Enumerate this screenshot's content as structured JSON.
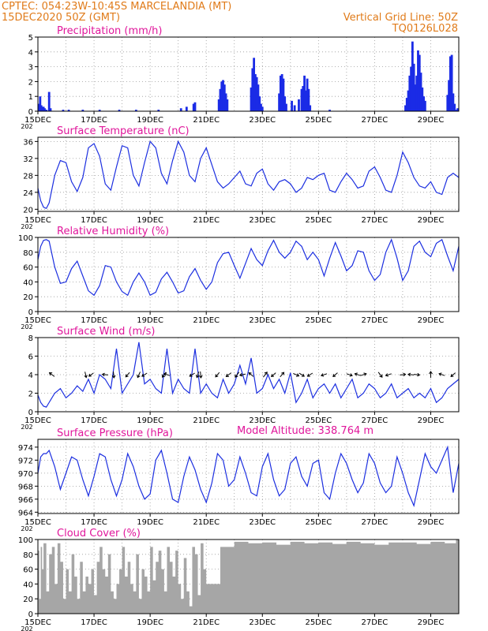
{
  "header": {
    "line1": "CPTEC:  054:23W-10:45S  MARCELANDIA (MT)",
    "line2": "15DEC2020 50Z (GMT)",
    "grid_note": "Vertical Grid Line: 50Z",
    "code": "TQ0126L028"
  },
  "colors": {
    "header": "#e07b1a",
    "title": "#e0169b",
    "series": "#1c2fe0",
    "bars": "#1a2be6",
    "cloud": "#a6a6a6",
    "arrow": "#000000"
  },
  "x_axis": {
    "day_start": 15.0,
    "day_end": 30.0,
    "tick_days": [
      15,
      17,
      19,
      21,
      23,
      25,
      27,
      29
    ],
    "tick_labels": [
      "15DEC",
      "17DEC",
      "19DEC",
      "21DEC",
      "23DEC",
      "25DEC",
      "27DEC",
      "29DEC"
    ],
    "grid_days": [
      16,
      17,
      18,
      19,
      20,
      21,
      22,
      23,
      24,
      25,
      26,
      27,
      28,
      29
    ],
    "year_fragment": "202"
  },
  "chart_data": [
    {
      "id": "precip",
      "type": "bar",
      "title": "Precipitation  (mm/h)",
      "ylim": [
        0,
        5
      ],
      "yticks": [
        0,
        1,
        2,
        3,
        4,
        5
      ],
      "bars": [
        [
          15.05,
          0.5
        ],
        [
          15.08,
          1.0
        ],
        [
          15.12,
          0.4
        ],
        [
          15.16,
          0.3
        ],
        [
          15.2,
          0.3
        ],
        [
          15.24,
          0.2
        ],
        [
          15.3,
          0.1
        ],
        [
          15.4,
          1.3
        ],
        [
          15.45,
          0.2
        ],
        [
          15.9,
          0.1
        ],
        [
          16.1,
          0.1
        ],
        [
          16.6,
          0.1
        ],
        [
          17.2,
          0.1
        ],
        [
          17.9,
          0.1
        ],
        [
          18.5,
          0.1
        ],
        [
          19.3,
          0.1
        ],
        [
          20.1,
          0.2
        ],
        [
          20.3,
          0.3
        ],
        [
          20.55,
          0.5
        ],
        [
          20.6,
          0.6
        ],
        [
          21.45,
          0.8
        ],
        [
          21.5,
          1.5
        ],
        [
          21.55,
          2.0
        ],
        [
          21.6,
          2.1
        ],
        [
          21.65,
          1.8
        ],
        [
          21.7,
          1.2
        ],
        [
          21.75,
          0.8
        ],
        [
          22.6,
          1.6
        ],
        [
          22.65,
          2.9
        ],
        [
          22.7,
          3.6
        ],
        [
          22.75,
          2.5
        ],
        [
          22.8,
          2.3
        ],
        [
          22.85,
          1.8
        ],
        [
          22.9,
          1.0
        ],
        [
          22.95,
          0.5
        ],
        [
          23.0,
          0.3
        ],
        [
          23.6,
          1.2
        ],
        [
          23.65,
          2.4
        ],
        [
          23.7,
          2.5
        ],
        [
          23.75,
          2.2
        ],
        [
          23.8,
          1.0
        ],
        [
          23.85,
          0.5
        ],
        [
          24.05,
          0.7
        ],
        [
          24.15,
          0.4
        ],
        [
          24.3,
          0.8
        ],
        [
          24.4,
          1.5
        ],
        [
          24.45,
          1.7
        ],
        [
          24.5,
          2.4
        ],
        [
          24.55,
          1.4
        ],
        [
          24.6,
          2.2
        ],
        [
          24.65,
          1.5
        ],
        [
          24.7,
          0.4
        ],
        [
          25.4,
          0.1
        ],
        [
          28.1,
          0.4
        ],
        [
          28.15,
          0.9
        ],
        [
          28.2,
          1.4
        ],
        [
          28.25,
          2.4
        ],
        [
          28.3,
          3.0
        ],
        [
          28.35,
          4.7
        ],
        [
          28.4,
          3.2
        ],
        [
          28.45,
          1.8
        ],
        [
          28.5,
          2.4
        ],
        [
          28.55,
          4.1
        ],
        [
          28.6,
          3.8
        ],
        [
          28.65,
          2.6
        ],
        [
          28.7,
          1.6
        ],
        [
          28.75,
          1.0
        ],
        [
          28.8,
          0.7
        ],
        [
          29.6,
          1.1
        ],
        [
          29.65,
          2.1
        ],
        [
          29.7,
          3.7
        ],
        [
          29.75,
          3.8
        ],
        [
          29.8,
          1.2
        ],
        [
          29.85,
          0.5
        ],
        [
          29.9,
          0.1
        ],
        [
          29.96,
          0.2
        ]
      ]
    },
    {
      "id": "temp",
      "type": "line",
      "title": "Surface Temperature (nC)",
      "ylim": [
        19.5,
        37
      ],
      "yticks": [
        20,
        24,
        28,
        32,
        36
      ],
      "x": [
        15.0,
        15.1,
        15.2,
        15.3,
        15.4,
        15.6,
        15.8,
        16.0,
        16.2,
        16.4,
        16.6,
        16.8,
        17.0,
        17.2,
        17.4,
        17.6,
        17.8,
        18.0,
        18.2,
        18.4,
        18.6,
        18.8,
        19.0,
        19.2,
        19.4,
        19.6,
        19.8,
        20.0,
        20.2,
        20.4,
        20.6,
        20.8,
        21.0,
        21.2,
        21.4,
        21.6,
        21.8,
        22.0,
        22.2,
        22.4,
        22.6,
        22.8,
        23.0,
        23.2,
        23.4,
        23.6,
        23.8,
        24.0,
        24.2,
        24.4,
        24.6,
        24.8,
        25.0,
        25.2,
        25.4,
        25.6,
        25.8,
        26.0,
        26.2,
        26.4,
        26.6,
        26.8,
        27.0,
        27.2,
        27.4,
        27.6,
        27.8,
        28.0,
        28.2,
        28.4,
        28.6,
        28.8,
        29.0,
        29.2,
        29.4,
        29.6,
        29.8,
        30.0
      ],
      "values": [
        25.0,
        22.0,
        20.5,
        20.2,
        21.5,
        28.0,
        31.5,
        31.0,
        26.5,
        24.2,
        27.5,
        34.5,
        35.5,
        32.5,
        26.0,
        24.5,
        30.0,
        35.0,
        34.5,
        28.0,
        25.5,
        31.0,
        36.0,
        34.5,
        28.5,
        26.0,
        31.5,
        36.0,
        33.5,
        28.0,
        26.5,
        32.0,
        34.5,
        30.5,
        26.5,
        25.0,
        26.0,
        27.5,
        29.0,
        26.0,
        25.5,
        28.5,
        29.5,
        26.0,
        24.5,
        26.5,
        27.0,
        26.0,
        24.0,
        25.0,
        27.5,
        27.0,
        28.0,
        28.5,
        24.5,
        24.0,
        26.5,
        28.5,
        27.0,
        25.0,
        25.5,
        29.0,
        30.0,
        27.5,
        24.5,
        24.0,
        28.0,
        33.5,
        31.0,
        27.5,
        25.5,
        25.0,
        26.5,
        24.0,
        23.5,
        27.5,
        28.5,
        27.5
      ]
    },
    {
      "id": "rh",
      "type": "line",
      "title": "Relative Humidity (%)",
      "ylim": [
        0,
        100
      ],
      "yticks": [
        0,
        20,
        40,
        60,
        80,
        100
      ],
      "x": [
        15.0,
        15.1,
        15.2,
        15.3,
        15.4,
        15.6,
        15.8,
        16.0,
        16.2,
        16.4,
        16.6,
        16.8,
        17.0,
        17.2,
        17.4,
        17.6,
        17.8,
        18.0,
        18.2,
        18.4,
        18.6,
        18.8,
        19.0,
        19.2,
        19.4,
        19.6,
        19.8,
        20.0,
        20.2,
        20.4,
        20.6,
        20.8,
        21.0,
        21.2,
        21.4,
        21.6,
        21.8,
        22.0,
        22.2,
        22.4,
        22.6,
        22.8,
        23.0,
        23.2,
        23.4,
        23.6,
        23.8,
        24.0,
        24.2,
        24.4,
        24.6,
        24.8,
        25.0,
        25.2,
        25.4,
        25.6,
        25.8,
        26.0,
        26.2,
        26.4,
        26.6,
        26.8,
        27.0,
        27.2,
        27.4,
        27.6,
        27.8,
        28.0,
        28.2,
        28.4,
        28.6,
        28.8,
        29.0,
        29.2,
        29.4,
        29.6,
        29.8,
        30.0
      ],
      "values": [
        70.0,
        88.0,
        96.0,
        97.0,
        95.0,
        60.0,
        38.0,
        40.0,
        58.0,
        68.0,
        48.0,
        28.0,
        22.0,
        35.0,
        62.0,
        60.0,
        40.0,
        27.0,
        22.0,
        40.0,
        52.0,
        40.0,
        22.0,
        26.0,
        44.0,
        53.0,
        40.0,
        25.0,
        28.0,
        47.0,
        58.0,
        42.0,
        30.0,
        40.0,
        66.0,
        78.0,
        80.0,
        62.0,
        45.0,
        65.0,
        85.0,
        70.0,
        62.0,
        82.0,
        96.0,
        80.0,
        72.0,
        80.0,
        95.0,
        88.0,
        70.0,
        80.0,
        70.0,
        48.0,
        72.0,
        93.0,
        75.0,
        55.0,
        62.0,
        82.0,
        80.0,
        55.0,
        42.0,
        50.0,
        80.0,
        97.0,
        72.0,
        42.0,
        55.0,
        88.0,
        95.0,
        80.0,
        74.0,
        92.0,
        97.0,
        75.0,
        55.0,
        88.0
      ]
    },
    {
      "id": "wind",
      "type": "line",
      "title": "Surface Wind (m/s)",
      "ylim": [
        0,
        8
      ],
      "yticks": [
        0,
        2,
        4,
        6,
        8
      ],
      "x": [
        15.0,
        15.1,
        15.2,
        15.3,
        15.4,
        15.6,
        15.8,
        16.0,
        16.2,
        16.4,
        16.6,
        16.8,
        17.0,
        17.2,
        17.4,
        17.6,
        17.8,
        18.0,
        18.2,
        18.4,
        18.6,
        18.8,
        19.0,
        19.2,
        19.4,
        19.6,
        19.8,
        20.0,
        20.2,
        20.4,
        20.6,
        20.8,
        21.0,
        21.2,
        21.4,
        21.6,
        21.8,
        22.0,
        22.2,
        22.4,
        22.6,
        22.8,
        23.0,
        23.2,
        23.4,
        23.6,
        23.8,
        24.0,
        24.2,
        24.4,
        24.6,
        24.8,
        25.0,
        25.2,
        25.4,
        25.6,
        25.8,
        26.0,
        26.2,
        26.4,
        26.6,
        26.8,
        27.0,
        27.2,
        27.4,
        27.6,
        27.8,
        28.0,
        28.2,
        28.4,
        28.6,
        28.8,
        29.0,
        29.2,
        29.4,
        29.6,
        29.8,
        30.0
      ],
      "values": [
        1.8,
        1.0,
        0.6,
        0.5,
        1.0,
        2.0,
        2.5,
        1.5,
        2.0,
        2.8,
        2.2,
        3.5,
        2.0,
        4.0,
        3.5,
        2.5,
        6.8,
        2.0,
        3.0,
        4.0,
        7.5,
        3.0,
        3.5,
        2.5,
        2.0,
        6.8,
        2.0,
        3.5,
        2.5,
        2.0,
        6.8,
        2.0,
        3.0,
        2.0,
        1.5,
        3.5,
        2.0,
        3.0,
        5.0,
        3.0,
        5.8,
        2.0,
        2.5,
        4.0,
        2.5,
        3.5,
        2.0,
        4.2,
        1.0,
        2.0,
        3.5,
        1.5,
        2.5,
        3.0,
        2.0,
        3.0,
        1.5,
        2.5,
        3.5,
        1.5,
        2.0,
        3.0,
        2.5,
        1.5,
        2.0,
        3.0,
        1.5,
        2.0,
        2.5,
        1.5,
        2.0,
        1.5,
        2.5,
        1.0,
        1.5,
        2.5,
        3.0,
        3.5
      ],
      "arrows": [
        [
          15.5,
          -0.8,
          0.6
        ],
        [
          16.7,
          0.2,
          -0.9
        ],
        [
          16.9,
          -0.7,
          -0.5
        ],
        [
          17.4,
          -0.9,
          0.1
        ],
        [
          17.7,
          0.1,
          -1.0
        ],
        [
          18.2,
          -0.6,
          -0.7
        ],
        [
          18.6,
          -0.4,
          -0.9
        ],
        [
          18.8,
          -0.8,
          -0.5
        ],
        [
          19.5,
          -0.6,
          -0.8
        ],
        [
          19.6,
          -0.9,
          0.3
        ],
        [
          20.5,
          -0.8,
          -0.5
        ],
        [
          20.7,
          -0.3,
          -0.9
        ],
        [
          20.8,
          0.1,
          -1.0
        ],
        [
          21.4,
          -0.6,
          -0.7
        ],
        [
          21.8,
          -0.8,
          -0.6
        ],
        [
          22.1,
          -0.6,
          -0.8
        ],
        [
          22.3,
          -0.9,
          -0.2
        ],
        [
          22.6,
          -0.7,
          0.6
        ],
        [
          23.1,
          0.6,
          0.8
        ],
        [
          23.4,
          -0.7,
          -0.6
        ],
        [
          23.7,
          0.6,
          0.7
        ],
        [
          24.2,
          0.9,
          -0.4
        ],
        [
          24.4,
          0.8,
          -0.5
        ],
        [
          24.7,
          -0.8,
          -0.5
        ],
        [
          25.2,
          -0.9,
          -0.3
        ],
        [
          25.6,
          -0.7,
          -0.6
        ],
        [
          26.1,
          0.9,
          -0.3
        ],
        [
          26.4,
          -0.9,
          0.3
        ],
        [
          26.6,
          0.9,
          0.3
        ],
        [
          27.2,
          0.6,
          -0.8
        ],
        [
          27.5,
          -0.9,
          -0.3
        ],
        [
          28.0,
          0.9,
          0.1
        ],
        [
          28.3,
          -0.9,
          0.1
        ],
        [
          28.5,
          0.9,
          -0.1
        ],
        [
          29.0,
          0.0,
          1.0
        ],
        [
          29.4,
          -0.9,
          0.3
        ],
        [
          29.8,
          -0.7,
          -0.6
        ]
      ]
    },
    {
      "id": "pres",
      "type": "line",
      "title": "Surface Pressure (hPa)",
      "altitude": "Model Altitude: 338.764  m",
      "ylim": [
        963.8,
        975.2
      ],
      "yticks": [
        964,
        966,
        968,
        970,
        972,
        974
      ],
      "x": [
        15.0,
        15.1,
        15.2,
        15.3,
        15.4,
        15.6,
        15.8,
        16.0,
        16.2,
        16.4,
        16.6,
        16.8,
        17.0,
        17.2,
        17.4,
        17.6,
        17.8,
        18.0,
        18.2,
        18.4,
        18.6,
        18.8,
        19.0,
        19.2,
        19.4,
        19.6,
        19.8,
        20.0,
        20.2,
        20.4,
        20.6,
        20.8,
        21.0,
        21.2,
        21.4,
        21.6,
        21.8,
        22.0,
        22.2,
        22.4,
        22.6,
        22.8,
        23.0,
        23.2,
        23.4,
        23.6,
        23.8,
        24.0,
        24.2,
        24.4,
        24.6,
        24.8,
        25.0,
        25.2,
        25.4,
        25.6,
        25.8,
        26.0,
        26.2,
        26.4,
        26.6,
        26.8,
        27.0,
        27.2,
        27.4,
        27.6,
        27.8,
        28.0,
        28.2,
        28.4,
        28.6,
        28.8,
        29.0,
        29.2,
        29.4,
        29.6,
        29.8,
        30.0
      ],
      "values": [
        970.0,
        972.5,
        973.0,
        973.0,
        973.5,
        971.0,
        967.5,
        970.0,
        972.5,
        972.0,
        969.0,
        966.5,
        969.5,
        973.0,
        972.5,
        969.0,
        966.5,
        969.0,
        973.0,
        971.0,
        968.0,
        966.0,
        966.8,
        972.0,
        973.5,
        970.0,
        966.0,
        965.5,
        969.5,
        972.5,
        970.5,
        967.5,
        965.5,
        968.5,
        973.0,
        972.0,
        968.0,
        969.0,
        972.5,
        970.0,
        967.0,
        966.5,
        971.0,
        973.0,
        969.0,
        966.5,
        967.5,
        971.5,
        972.5,
        969.5,
        968.0,
        971.5,
        972.0,
        967.0,
        966.0,
        970.0,
        973.0,
        971.5,
        969.0,
        967.0,
        968.5,
        973.0,
        971.5,
        968.5,
        967.0,
        968.0,
        972.5,
        970.0,
        967.0,
        965.0,
        969.0,
        973.0,
        971.0,
        970.0,
        972.0,
        974.0,
        967.0,
        971.5
      ]
    },
    {
      "id": "cloud",
      "type": "area",
      "title": "Cloud Cover (%)",
      "ylim": [
        0,
        100
      ],
      "yticks": [
        0,
        20,
        40,
        60,
        80,
        100
      ],
      "x": [
        15.0,
        15.05,
        15.1,
        15.15,
        15.2,
        15.3,
        15.4,
        15.5,
        15.6,
        15.7,
        15.8,
        15.9,
        16.0,
        16.1,
        16.2,
        16.3,
        16.4,
        16.5,
        16.6,
        16.7,
        16.8,
        16.9,
        17.0,
        17.1,
        17.2,
        17.3,
        17.4,
        17.5,
        17.6,
        17.7,
        17.8,
        17.9,
        18.0,
        18.1,
        18.2,
        18.3,
        18.4,
        18.5,
        18.6,
        18.7,
        18.8,
        18.9,
        19.0,
        19.1,
        19.2,
        19.3,
        19.4,
        19.5,
        19.6,
        19.7,
        19.8,
        19.9,
        20.0,
        20.1,
        20.2,
        20.3,
        20.4,
        20.5,
        20.6,
        20.7,
        20.8,
        20.9,
        21.0,
        21.5,
        22.0,
        22.5,
        23.0,
        23.5,
        24.0,
        24.5,
        25.0,
        25.5,
        26.0,
        26.5,
        27.0,
        27.5,
        28.0,
        28.5,
        29.0,
        29.5,
        29.9,
        30.0
      ],
      "values": [
        85,
        20,
        90,
        60,
        95,
        30,
        80,
        90,
        40,
        95,
        70,
        20,
        60,
        30,
        80,
        50,
        20,
        70,
        30,
        50,
        40,
        60,
        25,
        70,
        90,
        60,
        50,
        80,
        30,
        20,
        40,
        60,
        90,
        50,
        70,
        40,
        30,
        80,
        20,
        60,
        50,
        30,
        90,
        45,
        70,
        85,
        60,
        30,
        90,
        70,
        50,
        85,
        40,
        20,
        75,
        30,
        10,
        90,
        80,
        25,
        95,
        60,
        40,
        90,
        97,
        95,
        96,
        93,
        97,
        95,
        96,
        94,
        97,
        95,
        93,
        96,
        96,
        94,
        97,
        95,
        100,
        100
      ]
    }
  ]
}
